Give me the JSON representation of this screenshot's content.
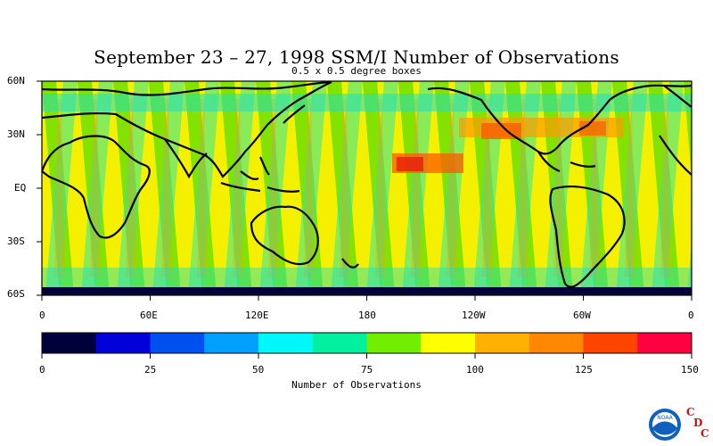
{
  "title": "September 23 – 27, 1998 SSM/I Number of Observations",
  "subtitle": "0.5 x 0.5 degree boxes",
  "map": {
    "lat_labels": [
      "60N",
      "30N",
      "EQ",
      "30S",
      "60S"
    ],
    "lon_labels": [
      "0",
      "60E",
      "120E",
      "180",
      "120W",
      "60W",
      "0"
    ]
  },
  "colorbar": {
    "title": "Number of Observations",
    "tick_labels": [
      "0",
      "25",
      "50",
      "75",
      "100",
      "125",
      "150"
    ],
    "colors": [
      "#00003a",
      "#0000d8",
      "#0050f0",
      "#00a0ff",
      "#00f8f8",
      "#00f0a0",
      "#70f000",
      "#ffff00",
      "#ffb000",
      "#ff8800",
      "#ff4400",
      "#ff0040"
    ]
  },
  "logo": {
    "agency": "NOAA",
    "letters": [
      "C",
      "D",
      "C"
    ]
  }
}
